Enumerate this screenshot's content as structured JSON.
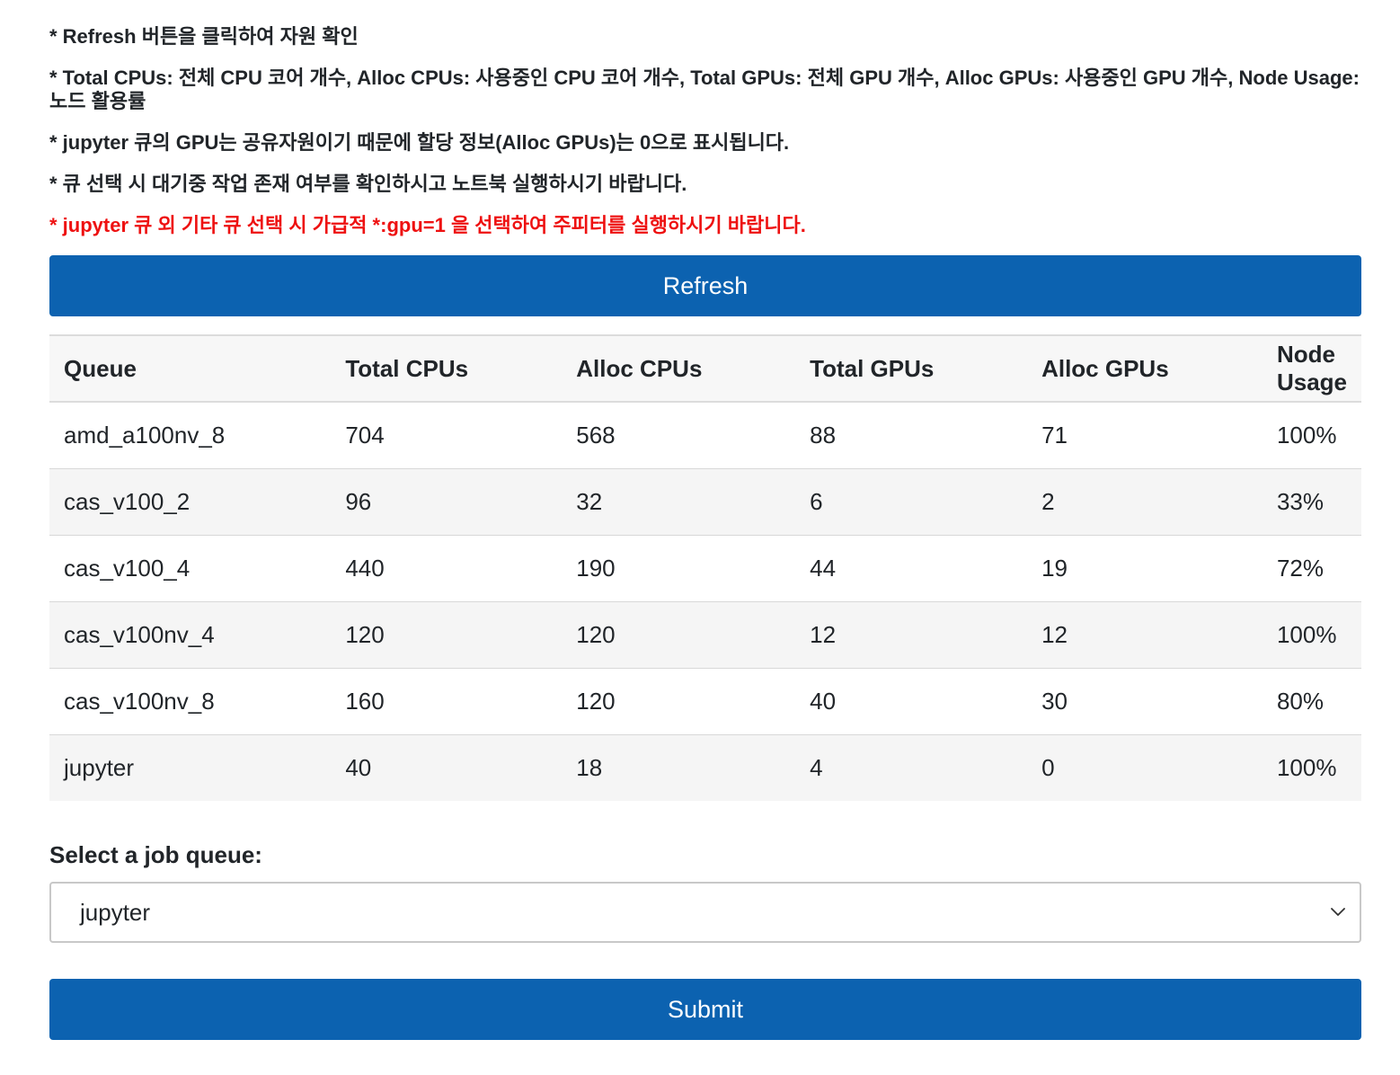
{
  "notes": [
    "* Refresh 버튼을 클릭하여 자원 확인",
    "* Total CPUs: 전체 CPU 코어 개수, Alloc CPUs: 사용중인 CPU 코어 개수, Total GPUs: 전체 GPU 개수, Alloc GPUs: 사용중인 GPU 개수, Node Usage: 노드 활용률",
    "* jupyter 큐의 GPU는 공유자원이기 때문에 할당 정보(Alloc GPUs)는 0으로 표시됩니다.",
    "* 큐 선택 시 대기중 작업 존재 여부를 확인하시고 노트북 실행하시기 바랍니다.",
    "* jupyter 큐 외 기타 큐 선택 시 가급적 *:gpu=1 을 선택하여 주피터를 실행하시기 바랍니다."
  ],
  "refresh_label": "Refresh",
  "table": {
    "headers": [
      "Queue",
      "Total CPUs",
      "Alloc CPUs",
      "Total GPUs",
      "Alloc GPUs",
      "Node Usage"
    ],
    "rows": [
      [
        "amd_a100nv_8",
        "704",
        "568",
        "88",
        "71",
        "100%"
      ],
      [
        "cas_v100_2",
        "96",
        "32",
        "6",
        "2",
        "33%"
      ],
      [
        "cas_v100_4",
        "440",
        "190",
        "44",
        "19",
        "72%"
      ],
      [
        "cas_v100nv_4",
        "120",
        "120",
        "12",
        "12",
        "100%"
      ],
      [
        "cas_v100nv_8",
        "160",
        "120",
        "40",
        "30",
        "80%"
      ],
      [
        "jupyter",
        "40",
        "18",
        "4",
        "0",
        "100%"
      ]
    ]
  },
  "select": {
    "label": "Select a job queue:",
    "value": "jupyter"
  },
  "submit_label": "Submit",
  "colors": {
    "primary": "#0c62b0",
    "warning_text": "#ee1111"
  },
  "icons": {
    "select_arrow": "chevron-down-icon"
  }
}
